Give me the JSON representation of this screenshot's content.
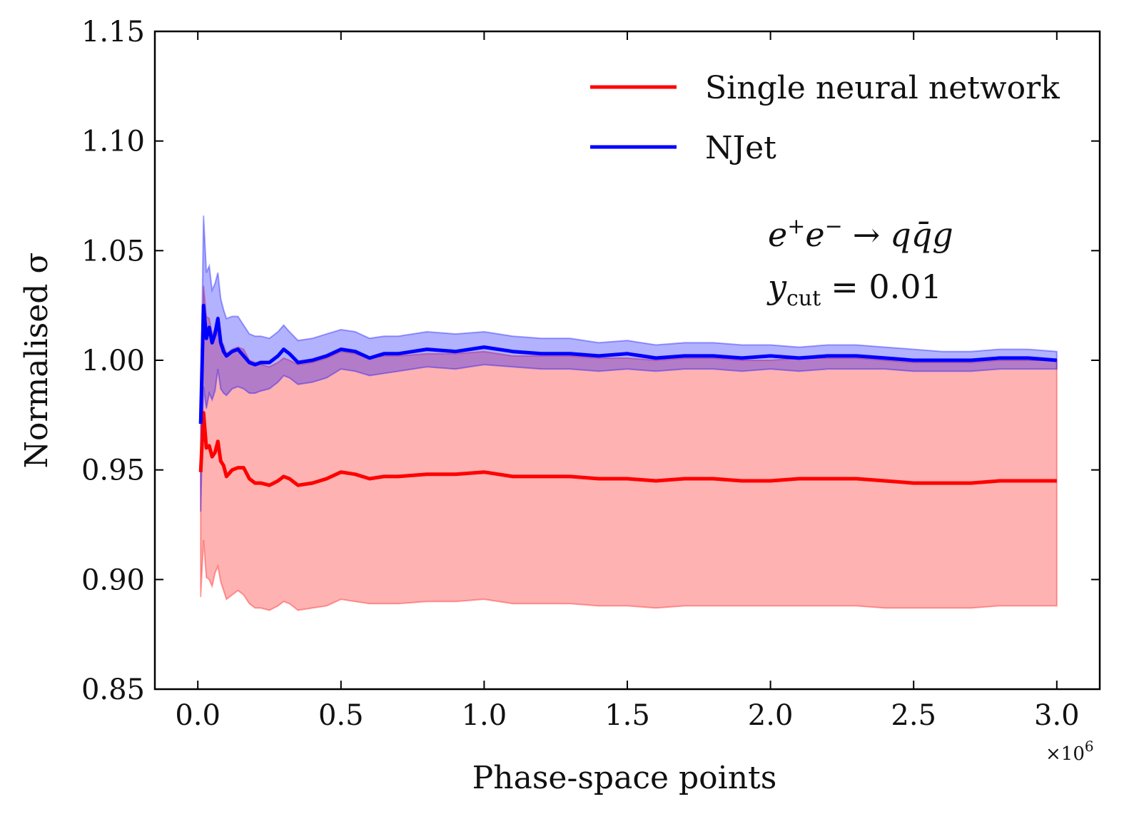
{
  "chart_data": {
    "type": "line",
    "title": "",
    "xlabel": "Phase-space points",
    "ylabel": "Normalised σ",
    "x_offset_label": "×10",
    "x_offset_exp": "6",
    "xlim": [
      -0.15,
      3.15
    ],
    "ylim": [
      0.85,
      1.15
    ],
    "xticks": [
      0.0,
      0.5,
      1.0,
      1.5,
      2.0,
      2.5,
      3.0
    ],
    "xtick_labels": [
      "0.0",
      "0.5",
      "1.0",
      "1.5",
      "2.0",
      "2.5",
      "3.0"
    ],
    "yticks": [
      0.85,
      0.9,
      0.95,
      1.0,
      1.05,
      1.1,
      1.15
    ],
    "ytick_labels": [
      "0.85",
      "0.90",
      "0.95",
      "1.00",
      "1.05",
      "1.10",
      "1.15"
    ],
    "grid": false,
    "legend_position": "top-right",
    "annotation": {
      "process_e": "e",
      "process_sup1": "+",
      "process_e2": "e",
      "process_sup2": "−",
      "process_arrow": "→",
      "process_final": "qq̄g",
      "ycut_y": "y",
      "ycut_sub": "cut",
      "ycut_value": "= 0.01"
    },
    "series": [
      {
        "name": "Single neural network",
        "color": "#ff0000",
        "band_color": "#ff0000",
        "x": [
          0.01,
          0.02,
          0.03,
          0.04,
          0.05,
          0.06,
          0.07,
          0.08,
          0.09,
          0.1,
          0.12,
          0.14,
          0.16,
          0.18,
          0.2,
          0.22,
          0.25,
          0.28,
          0.3,
          0.32,
          0.35,
          0.4,
          0.45,
          0.5,
          0.55,
          0.6,
          0.65,
          0.7,
          0.8,
          0.9,
          1.0,
          1.1,
          1.2,
          1.3,
          1.4,
          1.5,
          1.6,
          1.7,
          1.8,
          1.9,
          2.0,
          2.1,
          2.2,
          2.3,
          2.4,
          2.5,
          2.6,
          2.7,
          2.8,
          2.9,
          3.0
        ],
        "y": [
          0.949,
          0.976,
          0.96,
          0.961,
          0.956,
          0.958,
          0.963,
          0.954,
          0.952,
          0.947,
          0.95,
          0.951,
          0.951,
          0.946,
          0.944,
          0.944,
          0.943,
          0.945,
          0.947,
          0.946,
          0.943,
          0.944,
          0.946,
          0.949,
          0.948,
          0.946,
          0.947,
          0.947,
          0.948,
          0.948,
          0.949,
          0.947,
          0.947,
          0.947,
          0.946,
          0.946,
          0.945,
          0.946,
          0.946,
          0.945,
          0.945,
          0.946,
          0.946,
          0.946,
          0.945,
          0.944,
          0.944,
          0.944,
          0.945,
          0.945,
          0.945
        ],
        "upper": [
          0.951,
          1.034,
          1.02,
          1.019,
          1.012,
          1.014,
          1.02,
          1.009,
          1.007,
          1.003,
          1.005,
          1.006,
          1.005,
          1.0,
          0.999,
          0.998,
          0.997,
          0.999,
          1.001,
          1.0,
          0.998,
          0.999,
          1.001,
          1.004,
          1.003,
          1.001,
          1.002,
          1.002,
          1.003,
          1.003,
          1.004,
          1.002,
          1.002,
          1.002,
          1.001,
          1.001,
          1.0,
          1.001,
          1.001,
          1.0,
          1.0,
          1.001,
          1.001,
          1.001,
          1.0,
          0.999,
          0.999,
          0.999,
          1.0,
          1.0,
          1.0
        ],
        "lower": [
          0.892,
          0.918,
          0.901,
          0.9,
          0.897,
          0.903,
          0.906,
          0.899,
          0.895,
          0.891,
          0.893,
          0.895,
          0.893,
          0.889,
          0.887,
          0.887,
          0.886,
          0.888,
          0.89,
          0.889,
          0.886,
          0.887,
          0.888,
          0.891,
          0.89,
          0.889,
          0.889,
          0.889,
          0.89,
          0.89,
          0.891,
          0.889,
          0.889,
          0.889,
          0.888,
          0.888,
          0.887,
          0.888,
          0.888,
          0.888,
          0.888,
          0.888,
          0.888,
          0.888,
          0.887,
          0.887,
          0.887,
          0.887,
          0.888,
          0.888,
          0.888
        ]
      },
      {
        "name": "NJet",
        "color": "#0000ff",
        "band_color": "#0000ff",
        "x": [
          0.01,
          0.02,
          0.03,
          0.04,
          0.05,
          0.06,
          0.07,
          0.08,
          0.09,
          0.1,
          0.12,
          0.14,
          0.16,
          0.18,
          0.2,
          0.22,
          0.25,
          0.28,
          0.3,
          0.32,
          0.35,
          0.4,
          0.45,
          0.5,
          0.55,
          0.6,
          0.65,
          0.7,
          0.8,
          0.9,
          1.0,
          1.1,
          1.2,
          1.3,
          1.4,
          1.5,
          1.6,
          1.7,
          1.8,
          1.9,
          2.0,
          2.1,
          2.2,
          2.3,
          2.4,
          2.5,
          2.6,
          2.7,
          2.8,
          2.9,
          3.0
        ],
        "y": [
          0.971,
          1.025,
          1.01,
          1.015,
          1.008,
          1.012,
          1.019,
          1.008,
          1.004,
          1.002,
          1.004,
          1.005,
          1.002,
          0.999,
          0.998,
          0.999,
          0.999,
          1.002,
          1.005,
          1.003,
          0.999,
          1.0,
          1.002,
          1.005,
          1.004,
          1.001,
          1.003,
          1.003,
          1.005,
          1.004,
          1.006,
          1.004,
          1.003,
          1.003,
          1.002,
          1.003,
          1.001,
          1.002,
          1.002,
          1.001,
          1.002,
          1.001,
          1.002,
          1.002,
          1.001,
          1.0,
          1.0,
          1.0,
          1.001,
          1.001,
          1.0
        ],
        "upper": [
          0.975,
          1.066,
          1.04,
          1.043,
          1.032,
          1.035,
          1.04,
          1.028,
          1.023,
          1.019,
          1.02,
          1.02,
          1.016,
          1.012,
          1.011,
          1.011,
          1.01,
          1.013,
          1.016,
          1.013,
          1.009,
          1.01,
          1.012,
          1.014,
          1.013,
          1.01,
          1.011,
          1.011,
          1.013,
          1.012,
          1.013,
          1.011,
          1.01,
          1.01,
          1.008,
          1.009,
          1.007,
          1.008,
          1.008,
          1.007,
          1.007,
          1.006,
          1.007,
          1.007,
          1.006,
          1.005,
          1.004,
          1.004,
          1.005,
          1.005,
          1.004
        ],
        "lower": [
          0.931,
          0.988,
          0.978,
          0.985,
          0.982,
          0.986,
          0.996,
          0.987,
          0.985,
          0.984,
          0.987,
          0.988,
          0.987,
          0.985,
          0.985,
          0.986,
          0.987,
          0.99,
          0.993,
          0.992,
          0.989,
          0.99,
          0.992,
          0.996,
          0.995,
          0.993,
          0.994,
          0.995,
          0.997,
          0.996,
          0.998,
          0.997,
          0.996,
          0.996,
          0.995,
          0.996,
          0.995,
          0.996,
          0.996,
          0.995,
          0.996,
          0.995,
          0.996,
          0.996,
          0.996,
          0.995,
          0.995,
          0.995,
          0.996,
          0.996,
          0.996
        ]
      }
    ]
  }
}
